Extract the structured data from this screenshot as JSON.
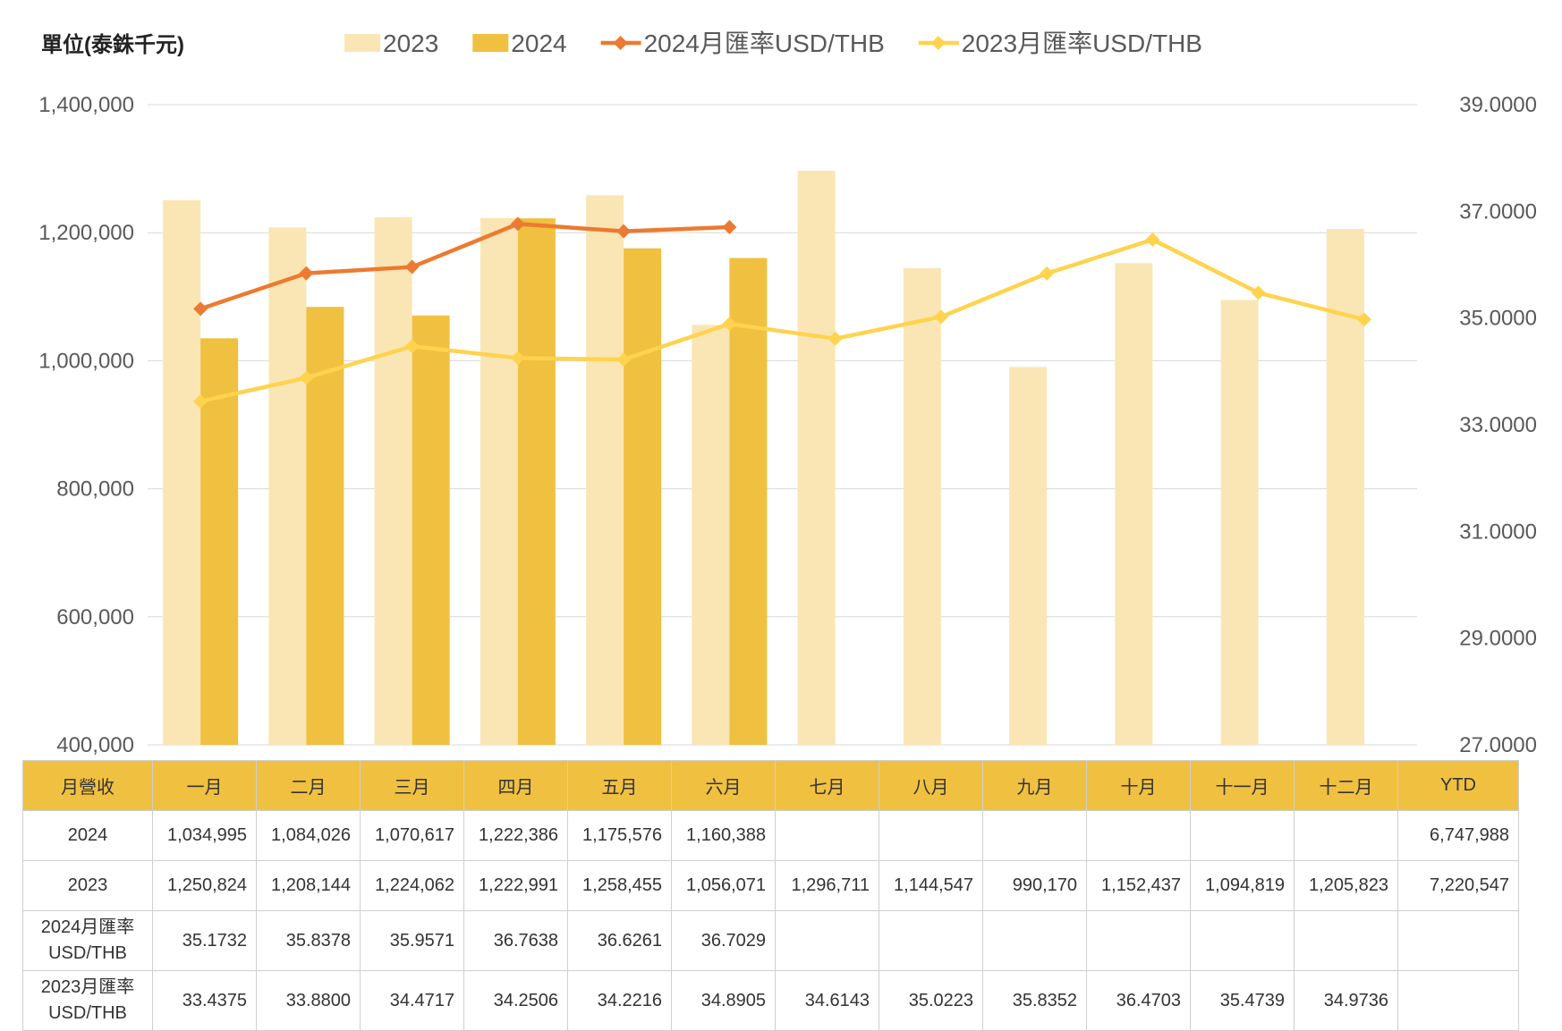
{
  "unit_label": "單位(泰銖千元)",
  "chart_data": {
    "type": "bar",
    "categories": [
      "一月",
      "二月",
      "三月",
      "四月",
      "五月",
      "六月",
      "七月",
      "八月",
      "九月",
      "十月",
      "十一月",
      "十二月"
    ],
    "series": [
      {
        "name": "2023",
        "type": "bar",
        "axis": "left",
        "color": "#fae6b4",
        "values": [
          1250824,
          1208144,
          1224062,
          1222991,
          1258455,
          1056071,
          1296711,
          1144547,
          990170,
          1152437,
          1094819,
          1205823
        ]
      },
      {
        "name": "2024",
        "type": "bar",
        "axis": "left",
        "color": "#f0c040",
        "values": [
          1034995,
          1084026,
          1070617,
          1222386,
          1175576,
          1160388,
          null,
          null,
          null,
          null,
          null,
          null
        ]
      },
      {
        "name": "2024月匯率USD/THB",
        "type": "line",
        "axis": "right",
        "color": "#ec7a30",
        "values": [
          35.1732,
          35.8378,
          35.9571,
          36.7638,
          36.6261,
          36.7029,
          null,
          null,
          null,
          null,
          null,
          null
        ]
      },
      {
        "name": "2023月匯率USD/THB",
        "type": "line",
        "axis": "right",
        "color": "#ffd34e",
        "values": [
          33.4375,
          33.88,
          34.4717,
          34.2506,
          34.2216,
          34.8905,
          34.6143,
          35.0223,
          35.8352,
          36.4703,
          35.4739,
          34.9736
        ]
      }
    ],
    "y_left": {
      "min": 400000,
      "max": 1400000,
      "step": 200000,
      "ticks": [
        "400,000",
        "600,000",
        "800,000",
        "1,000,000",
        "1,200,000",
        "1,400,000"
      ]
    },
    "y_right": {
      "min": 27,
      "max": 39,
      "step": 2,
      "ticks": [
        "27.0000",
        "29.0000",
        "31.0000",
        "33.0000",
        "35.0000",
        "37.0000",
        "39.0000"
      ]
    },
    "grid": true,
    "legend_position": "top"
  },
  "table": {
    "headers": [
      "月營收",
      "一月",
      "二月",
      "三月",
      "四月",
      "五月",
      "六月",
      "七月",
      "八月",
      "九月",
      "十月",
      "十一月",
      "十二月",
      "YTD"
    ],
    "rows": [
      {
        "label": "2024",
        "cells": [
          "1,034,995",
          "1,084,026",
          "1,070,617",
          "1,222,386",
          "1,175,576",
          "1,160,388",
          "",
          "",
          "",
          "",
          "",
          "",
          "6,747,988"
        ]
      },
      {
        "label": "2023",
        "cells": [
          "1,250,824",
          "1,208,144",
          "1,224,062",
          "1,222,991",
          "1,258,455",
          "1,056,071",
          "1,296,711",
          "1,144,547",
          "990,170",
          "1,152,437",
          "1,094,819",
          "1,205,823",
          "7,220,547"
        ]
      },
      {
        "label": "2024月匯率USD/THB",
        "cells": [
          "35.1732",
          "35.8378",
          "35.9571",
          "36.7638",
          "36.6261",
          "36.7029",
          "",
          "",
          "",
          "",
          "",
          "",
          ""
        ]
      },
      {
        "label": "2023月匯率USD/THB",
        "cells": [
          "33.4375",
          "33.8800",
          "34.4717",
          "34.2506",
          "34.2216",
          "34.8905",
          "34.6143",
          "35.0223",
          "35.8352",
          "36.4703",
          "35.4739",
          "34.9736",
          ""
        ]
      }
    ]
  }
}
